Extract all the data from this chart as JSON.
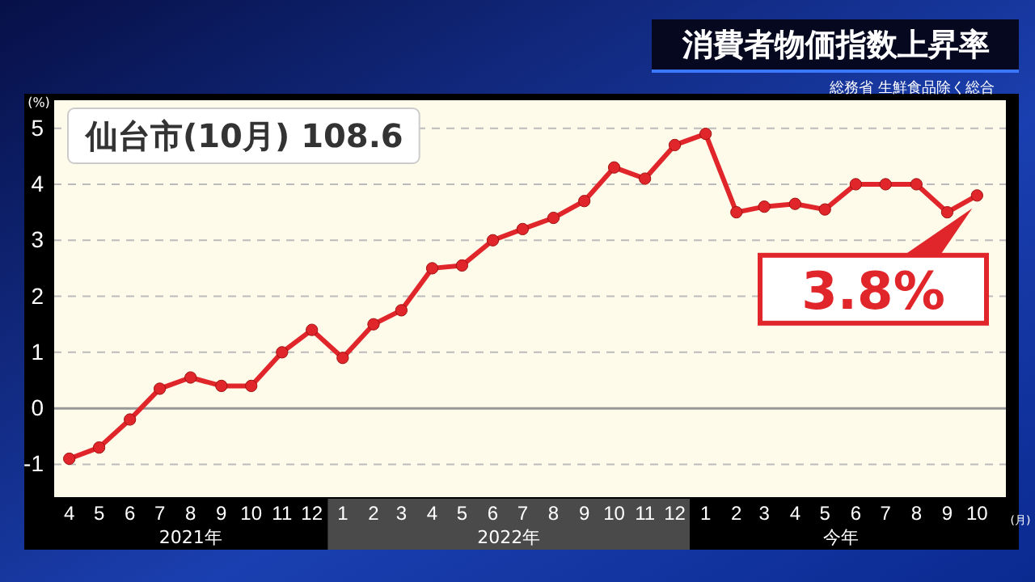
{
  "chart_data": {
    "type": "line",
    "title": "消費者物価指数上昇率",
    "subtitle": "総務省 生鮮食品除く総合",
    "ylabel": "(%)",
    "xlabel": "(月)",
    "x": [
      "2021-04",
      "2021-05",
      "2021-06",
      "2021-07",
      "2021-08",
      "2021-09",
      "2021-10",
      "2021-11",
      "2021-12",
      "2022-01",
      "2022-02",
      "2022-03",
      "2022-04",
      "2022-05",
      "2022-06",
      "2022-07",
      "2022-08",
      "2022-09",
      "2022-10",
      "2022-11",
      "2022-12",
      "2023-01",
      "2023-02",
      "2023-03",
      "2023-04",
      "2023-05",
      "2023-06",
      "2023-07",
      "2023-08",
      "2023-09",
      "2023-10"
    ],
    "series": [
      {
        "color": "#e0262b",
        "values": [
          -0.9,
          -0.7,
          -0.2,
          0.35,
          0.55,
          0.4,
          0.4,
          1.0,
          1.4,
          0.9,
          1.5,
          1.75,
          2.5,
          2.55,
          3.0,
          3.2,
          3.4,
          3.7,
          4.3,
          4.1,
          4.7,
          4.9,
          3.5,
          3.6,
          3.65,
          3.55,
          4.0,
          4.0,
          4.0,
          3.5,
          3.8
        ]
      }
    ],
    "xlim": [
      "2021-03-16",
      "2023-10-30"
    ],
    "xticks": [
      {
        "value": "2021-04",
        "label": "4"
      },
      {
        "value": "2021-05",
        "label": "5"
      },
      {
        "value": "2021-06",
        "label": "6"
      },
      {
        "value": "2021-07",
        "label": "7"
      },
      {
        "value": "2021-08",
        "label": "8"
      },
      {
        "value": "2021-09",
        "label": "9"
      },
      {
        "value": "2021-10",
        "label": "10"
      },
      {
        "value": "2021-11",
        "label": "11"
      },
      {
        "value": "2021-12",
        "label": "12"
      },
      {
        "value": "2022-01",
        "label": "1"
      },
      {
        "value": "2022-02",
        "label": "2"
      },
      {
        "value": "2022-03",
        "label": "3"
      },
      {
        "value": "2022-04",
        "label": "4"
      },
      {
        "value": "2022-05",
        "label": "5"
      },
      {
        "value": "2022-06",
        "label": "6"
      },
      {
        "value": "2022-07",
        "label": "7"
      },
      {
        "value": "2022-08",
        "label": "8"
      },
      {
        "value": "2022-09",
        "label": "9"
      },
      {
        "value": "2022-10",
        "label": "10"
      },
      {
        "value": "2022-11",
        "label": "11"
      },
      {
        "value": "2022-12",
        "label": "12"
      },
      {
        "value": "2023-01",
        "label": "1"
      },
      {
        "value": "2023-02",
        "label": "2"
      },
      {
        "value": "2023-03",
        "label": "3"
      },
      {
        "value": "2023-04",
        "label": "4"
      },
      {
        "value": "2023-05",
        "label": "5"
      },
      {
        "value": "2023-06",
        "label": "6"
      },
      {
        "value": "2023-07",
        "label": "7"
      },
      {
        "value": "2023-08",
        "label": "8"
      },
      {
        "value": "2023-09",
        "label": "9"
      },
      {
        "value": "2023-10",
        "label": "10"
      }
    ],
    "ylim": [
      -1.6,
      5.5
    ],
    "yticks": [
      -1,
      0,
      1,
      2,
      3,
      4,
      5
    ],
    "grid": "y",
    "marker": "circle",
    "line_style": "solid",
    "annotations": [
      "2021年",
      "2022年",
      "今年",
      "仙台市(10月) 108.6",
      {
        "text": "3.8%",
        "x": "2023-10",
        "y": 3.8
      }
    ]
  }
}
